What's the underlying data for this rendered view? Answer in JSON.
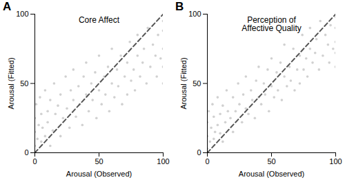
{
  "chart_data": [
    {
      "type": "scatter",
      "panel_label": "A",
      "title": "Core Affect",
      "x_label": "Arousal (Observed)",
      "y_label": "Arousal (Fitted)",
      "xlim": [
        0,
        100
      ],
      "ylim": [
        0,
        100
      ],
      "xticks": [
        0,
        50,
        100
      ],
      "yticks": [
        0,
        50,
        100
      ],
      "series": [
        {
          "type": "scatter",
          "color": "#c8c8c8",
          "marker": "circle",
          "x": [
            0,
            0,
            0,
            1,
            2,
            3,
            4,
            5,
            5,
            6,
            8,
            8,
            10,
            10,
            12,
            12,
            14,
            15,
            16,
            18,
            20,
            20,
            22,
            24,
            25,
            27,
            28,
            30,
            30,
            32,
            34,
            35,
            37,
            38,
            40,
            40,
            42,
            44,
            45,
            47,
            48,
            50,
            50,
            52,
            54,
            55,
            57,
            58,
            60,
            60,
            62,
            64,
            65,
            67,
            68,
            70,
            72,
            72,
            74,
            75,
            77,
            78,
            80,
            80,
            82,
            84,
            85,
            87,
            88,
            90,
            92,
            94,
            95,
            96,
            98,
            100,
            100,
            100,
            100,
            100
          ],
          "values": [
            5,
            15,
            25,
            35,
            10,
            20,
            40,
            8,
            28,
            18,
            45,
            12,
            30,
            22,
            5,
            38,
            16,
            50,
            28,
            34,
            12,
            42,
            25,
            55,
            32,
            18,
            45,
            38,
            60,
            26,
            48,
            35,
            20,
            55,
            42,
            65,
            30,
            50,
            38,
            58,
            25,
            45,
            70,
            35,
            55,
            42,
            62,
            30,
            50,
            75,
            40,
            60,
            48,
            70,
            35,
            55,
            65,
            42,
            80,
            52,
            60,
            45,
            70,
            85,
            55,
            65,
            75,
            50,
            90,
            62,
            78,
            70,
            55,
            85,
            68,
            75,
            95,
            50,
            62,
            88
          ]
        },
        {
          "type": "line",
          "color": "#555555",
          "line_style": "dashed",
          "x": [
            0,
            100
          ],
          "values": [
            0,
            100
          ]
        }
      ]
    },
    {
      "type": "scatter",
      "panel_label": "B",
      "title": "Perception of\nAffective Quality",
      "x_label": "Arousal (Observed)",
      "y_label": "Arousal (Fitted)",
      "xlim": [
        0,
        100
      ],
      "ylim": [
        0,
        100
      ],
      "xticks": [
        0,
        50,
        100
      ],
      "yticks": [
        0,
        50,
        100
      ],
      "series": [
        {
          "type": "scatter",
          "color": "#c8c8c8",
          "marker": "circle",
          "x": [
            0,
            0,
            0,
            1,
            2,
            3,
            4,
            5,
            5,
            6,
            8,
            8,
            10,
            10,
            12,
            12,
            14,
            15,
            16,
            18,
            20,
            20,
            22,
            24,
            25,
            27,
            28,
            30,
            30,
            32,
            34,
            35,
            37,
            38,
            40,
            40,
            42,
            44,
            45,
            47,
            48,
            50,
            50,
            52,
            54,
            55,
            57,
            58,
            60,
            60,
            62,
            64,
            65,
            67,
            68,
            70,
            72,
            72,
            74,
            75,
            77,
            78,
            80,
            80,
            82,
            84,
            85,
            87,
            88,
            90,
            92,
            94,
            95,
            96,
            98,
            100,
            100,
            100,
            100,
            100
          ],
          "values": [
            3,
            12,
            22,
            30,
            8,
            18,
            35,
            10,
            26,
            15,
            40,
            20,
            28,
            14,
            8,
            34,
            22,
            45,
            30,
            25,
            15,
            40,
            30,
            50,
            35,
            22,
            42,
            32,
            55,
            28,
            45,
            38,
            25,
            52,
            40,
            62,
            35,
            50,
            42,
            60,
            30,
            48,
            68,
            40,
            58,
            45,
            65,
            38,
            55,
            78,
            48,
            62,
            52,
            75,
            45,
            60,
            70,
            50,
            85,
            60,
            68,
            55,
            75,
            90,
            65,
            72,
            82,
            60,
            95,
            70,
            85,
            78,
            65,
            92,
            75,
            80,
            98,
            62,
            72,
            90
          ]
        },
        {
          "type": "line",
          "color": "#555555",
          "line_style": "dashed",
          "x": [
            0,
            100
          ],
          "values": [
            0,
            100
          ]
        }
      ]
    }
  ]
}
